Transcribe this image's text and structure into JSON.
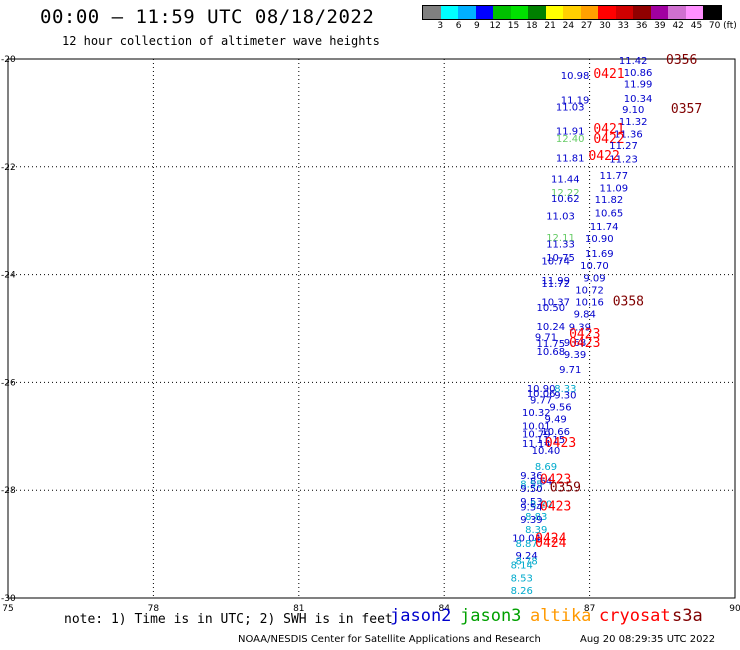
{
  "header": {
    "title": "00:00 – 11:59 UTC 08/18/2022",
    "subtitle": "12 hour collection of altimeter wave heights"
  },
  "colorbar": {
    "swatches": [
      "#808080",
      "#00ffff",
      "#00b0ff",
      "#0000ff",
      "#00c000",
      "#00e000",
      "#008000",
      "#ffff00",
      "#ffd000",
      "#ffa000",
      "#ff0000",
      "#d00000",
      "#900000",
      "#a000a0",
      "#d070d0",
      "#ff90ff",
      "#000000"
    ],
    "labels": [
      "3",
      "6",
      "9",
      "12",
      "15",
      "18",
      "21",
      "24",
      "27",
      "30",
      "33",
      "36",
      "39",
      "42",
      "45",
      "70 (ft)"
    ],
    "colors": {
      "jason2": "#0000cc",
      "jason3": "#00a000",
      "altika": "#ff9900",
      "cryosat": "#ff0000",
      "s3a": "#800000",
      "light_blue": "#00aacc",
      "light_green": "#66cc66"
    }
  },
  "map": {
    "lon_ticks": [
      "75",
      "78",
      "81",
      "84",
      "87",
      "90"
    ],
    "lat_ticks": [
      "-20",
      "-22",
      "-24",
      "-26",
      "-28",
      "-30"
    ],
    "lon_range": [
      75,
      90
    ],
    "lat_range": [
      -30,
      -20
    ],
    "grid": true,
    "observations": [
      {
        "t": "11.42",
        "lon": 87.9,
        "lat": -20.02,
        "c": "jason2"
      },
      {
        "t": "0356",
        "lon": 88.9,
        "lat": -20.02,
        "c": "s3a"
      },
      {
        "t": "10.86",
        "lon": 88.0,
        "lat": -20.24,
        "c": "jason2"
      },
      {
        "t": "0421",
        "lon": 87.4,
        "lat": -20.28,
        "c": "cryosat"
      },
      {
        "t": "10.98",
        "lon": 86.7,
        "lat": -20.3,
        "c": "jason2"
      },
      {
        "t": "11.99",
        "lon": 88.0,
        "lat": -20.45,
        "c": "jason2"
      },
      {
        "t": "10.34",
        "lon": 88.0,
        "lat": -20.72,
        "c": "jason2"
      },
      {
        "t": "11.19",
        "lon": 86.7,
        "lat": -20.75,
        "c": "jason2"
      },
      {
        "t": "11.03",
        "lon": 86.6,
        "lat": -20.88,
        "c": "jason2"
      },
      {
        "t": "9.10",
        "lon": 87.9,
        "lat": -20.93,
        "c": "jason2"
      },
      {
        "t": "0357",
        "lon": 89.0,
        "lat": -20.93,
        "c": "s3a"
      },
      {
        "t": "11.32",
        "lon": 87.9,
        "lat": -21.15,
        "c": "jason2"
      },
      {
        "t": "11.91",
        "lon": 86.6,
        "lat": -21.33,
        "c": "jason2"
      },
      {
        "t": "0421",
        "lon": 87.4,
        "lat": -21.3,
        "c": "cryosat"
      },
      {
        "t": "11.36",
        "lon": 87.8,
        "lat": -21.38,
        "c": "jason2"
      },
      {
        "t": "12.40",
        "lon": 86.6,
        "lat": -21.47,
        "c": "light_green"
      },
      {
        "t": "0422",
        "lon": 87.4,
        "lat": -21.48,
        "c": "cryosat"
      },
      {
        "t": "11.27",
        "lon": 87.7,
        "lat": -21.6,
        "c": "jason2"
      },
      {
        "t": "11.81",
        "lon": 86.6,
        "lat": -21.83,
        "c": "jason2"
      },
      {
        "t": "0422",
        "lon": 87.3,
        "lat": -21.8,
        "c": "cryosat"
      },
      {
        "t": "11.23",
        "lon": 87.7,
        "lat": -21.85,
        "c": "jason2"
      },
      {
        "t": "11.77",
        "lon": 87.5,
        "lat": -22.15,
        "c": "jason2"
      },
      {
        "t": "11.44",
        "lon": 86.5,
        "lat": -22.22,
        "c": "jason2"
      },
      {
        "t": "11.09",
        "lon": 87.5,
        "lat": -22.38,
        "c": "jason2"
      },
      {
        "t": "12.22",
        "lon": 86.5,
        "lat": -22.47,
        "c": "light_green"
      },
      {
        "t": "10.62",
        "lon": 86.5,
        "lat": -22.58,
        "c": "jason2"
      },
      {
        "t": "11.82",
        "lon": 87.4,
        "lat": -22.6,
        "c": "jason2"
      },
      {
        "t": "10.65",
        "lon": 87.4,
        "lat": -22.85,
        "c": "jason2"
      },
      {
        "t": "11.03",
        "lon": 86.4,
        "lat": -22.9,
        "c": "jason2"
      },
      {
        "t": "11.74",
        "lon": 87.3,
        "lat": -23.1,
        "c": "jason2"
      },
      {
        "t": "12.11",
        "lon": 86.4,
        "lat": -23.3,
        "c": "light_green"
      },
      {
        "t": "10.90",
        "lon": 87.2,
        "lat": -23.32,
        "c": "jason2"
      },
      {
        "t": "11.33",
        "lon": 86.4,
        "lat": -23.42,
        "c": "jason2"
      },
      {
        "t": "11.69",
        "lon": 87.2,
        "lat": -23.6,
        "c": "jason2"
      },
      {
        "t": "10.75",
        "lon": 86.4,
        "lat": -23.67,
        "c": "jason2"
      },
      {
        "t": "10.74",
        "lon": 86.3,
        "lat": -23.74,
        "c": "jason2"
      },
      {
        "t": "10.70",
        "lon": 87.1,
        "lat": -23.82,
        "c": "jason2"
      },
      {
        "t": "9.09",
        "lon": 87.1,
        "lat": -24.05,
        "c": "jason2"
      },
      {
        "t": "11.99",
        "lon": 86.3,
        "lat": -24.1,
        "c": "jason2"
      },
      {
        "t": "11.72",
        "lon": 86.3,
        "lat": -24.16,
        "c": "jason2"
      },
      {
        "t": "10.72",
        "lon": 87.0,
        "lat": -24.28,
        "c": "jason2"
      },
      {
        "t": "10.37",
        "lon": 86.3,
        "lat": -24.5,
        "c": "jason2"
      },
      {
        "t": "10.16",
        "lon": 87.0,
        "lat": -24.5,
        "c": "jason2"
      },
      {
        "t": "0358",
        "lon": 87.8,
        "lat": -24.5,
        "c": "s3a"
      },
      {
        "t": "10.50",
        "lon": 86.2,
        "lat": -24.6,
        "c": "jason2"
      },
      {
        "t": "9.84",
        "lon": 86.9,
        "lat": -24.72,
        "c": "jason2"
      },
      {
        "t": "10.24",
        "lon": 86.2,
        "lat": -24.95,
        "c": "jason2"
      },
      {
        "t": "9.39",
        "lon": 86.8,
        "lat": -24.96,
        "c": "jason2"
      },
      {
        "t": "9.71",
        "lon": 86.1,
        "lat": -25.15,
        "c": "jason2"
      },
      {
        "t": "0423",
        "lon": 86.9,
        "lat": -25.1,
        "c": "cryosat"
      },
      {
        "t": "11.75",
        "lon": 86.2,
        "lat": -25.27,
        "c": "jason2"
      },
      {
        "t": "9.68",
        "lon": 86.7,
        "lat": -25.25,
        "c": "jason2"
      },
      {
        "t": "0423",
        "lon": 86.9,
        "lat": -25.27,
        "c": "cryosat"
      },
      {
        "t": "10.68",
        "lon": 86.2,
        "lat": -25.42,
        "c": "jason2"
      },
      {
        "t": "9.39",
        "lon": 86.7,
        "lat": -25.47,
        "c": "jason2"
      },
      {
        "t": "9.71",
        "lon": 86.6,
        "lat": -25.75,
        "c": "jason2"
      },
      {
        "t": "10.90",
        "lon": 86.0,
        "lat": -26.1,
        "c": "jason2"
      },
      {
        "t": "8.33",
        "lon": 86.5,
        "lat": -26.1,
        "c": "light_blue"
      },
      {
        "t": "10.06",
        "lon": 86.0,
        "lat": -26.2,
        "c": "jason2"
      },
      {
        "t": "9.30",
        "lon": 86.5,
        "lat": -26.22,
        "c": "jason2"
      },
      {
        "t": "9.77",
        "lon": 86.0,
        "lat": -26.32,
        "c": "jason2"
      },
      {
        "t": "9.56",
        "lon": 86.4,
        "lat": -26.45,
        "c": "jason2"
      },
      {
        "t": "10.32",
        "lon": 85.9,
        "lat": -26.55,
        "c": "jason2"
      },
      {
        "t": "9.49",
        "lon": 86.3,
        "lat": -26.67,
        "c": "jason2"
      },
      {
        "t": "10.01",
        "lon": 85.9,
        "lat": -26.8,
        "c": "jason2"
      },
      {
        "t": "10.66",
        "lon": 86.3,
        "lat": -26.9,
        "c": "jason2"
      },
      {
        "t": "10.79",
        "lon": 85.9,
        "lat": -26.95,
        "c": "jason2"
      },
      {
        "t": "11.15",
        "lon": 86.2,
        "lat": -27.05,
        "c": "jason2"
      },
      {
        "t": "11.14",
        "lon": 85.9,
        "lat": -27.12,
        "c": "jason2"
      },
      {
        "t": "0423",
        "lon": 86.4,
        "lat": -27.12,
        "c": "cryosat"
      },
      {
        "t": "10.40",
        "lon": 86.1,
        "lat": -27.25,
        "c": "jason2"
      },
      {
        "t": "8.69",
        "lon": 86.1,
        "lat": -27.55,
        "c": "light_blue"
      },
      {
        "t": "9.36",
        "lon": 85.8,
        "lat": -27.72,
        "c": "jason2"
      },
      {
        "t": "8.64",
        "lon": 86.0,
        "lat": -27.82,
        "c": "jason2"
      },
      {
        "t": "0423",
        "lon": 86.3,
        "lat": -27.8,
        "c": "cryosat"
      },
      {
        "t": "8.55",
        "lon": 85.8,
        "lat": -27.88,
        "c": "light_blue"
      },
      {
        "t": "9.50",
        "lon": 85.8,
        "lat": -27.96,
        "c": "jason2"
      },
      {
        "t": "0359",
        "lon": 86.5,
        "lat": -27.95,
        "c": "s3a"
      },
      {
        "t": "9.53",
        "lon": 85.8,
        "lat": -28.2,
        "c": "jason2"
      },
      {
        "t": "8.20",
        "lon": 86.0,
        "lat": -28.25,
        "c": "light_blue"
      },
      {
        "t": "9.54",
        "lon": 85.8,
        "lat": -28.3,
        "c": "jason2"
      },
      {
        "t": "0423",
        "lon": 86.3,
        "lat": -28.3,
        "c": "cryosat"
      },
      {
        "t": "8.83",
        "lon": 85.9,
        "lat": -28.48,
        "c": "light_blue"
      },
      {
        "t": "9.39",
        "lon": 85.8,
        "lat": -28.53,
        "c": "jason2"
      },
      {
        "t": "8.39",
        "lon": 85.9,
        "lat": -28.72,
        "c": "light_blue"
      },
      {
        "t": "10.04",
        "lon": 85.7,
        "lat": -28.88,
        "c": "jason2"
      },
      {
        "t": "0424",
        "lon": 86.2,
        "lat": -28.9,
        "c": "cryosat"
      },
      {
        "t": "8.87",
        "lon": 85.7,
        "lat": -28.98,
        "c": "light_blue"
      },
      {
        "t": "0424",
        "lon": 86.2,
        "lat": -28.98,
        "c": "cryosat"
      },
      {
        "t": "9.24",
        "lon": 85.7,
        "lat": -29.2,
        "c": "jason2"
      },
      {
        "t": "8.78",
        "lon": 85.7,
        "lat": -29.3,
        "c": "light_blue"
      },
      {
        "t": "8.14",
        "lon": 85.6,
        "lat": -29.38,
        "c": "light_blue"
      },
      {
        "t": "8.53",
        "lon": 85.6,
        "lat": -29.62,
        "c": "light_blue"
      },
      {
        "t": "8.26",
        "lon": 85.6,
        "lat": -29.85,
        "c": "light_blue"
      }
    ]
  },
  "legend": {
    "note": "note: 1) Time is in UTC; 2) SWH is in feet",
    "satellites": [
      {
        "label": "jason2",
        "color": "#0000cc"
      },
      {
        "label": "jason3",
        "color": "#00a000"
      },
      {
        "label": "altika",
        "color": "#ff9900"
      },
      {
        "label": "cryosat",
        "color": "#ff0000"
      },
      {
        "label": "s3a",
        "color": "#800000"
      }
    ]
  },
  "footer": {
    "credit": "NOAA/NESDIS Center for Satellite Applications and Research",
    "timestamp": "Aug 20 08:29:35 UTC 2022"
  }
}
